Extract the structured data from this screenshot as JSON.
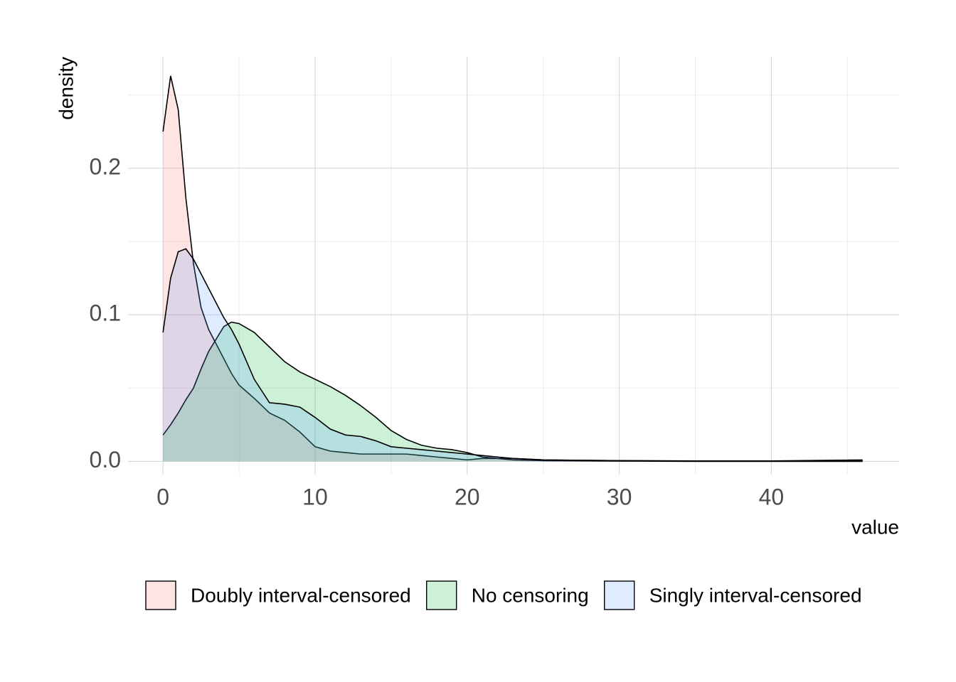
{
  "chart_data": {
    "type": "density",
    "x_label": "value",
    "y_label": "density",
    "x": [
      0,
      0.5,
      1,
      1.5,
      2,
      2.5,
      3,
      4,
      4.5,
      5,
      6,
      7,
      8,
      9,
      10,
      11,
      12,
      13,
      14,
      15,
      16,
      17,
      18,
      19,
      20,
      21,
      22,
      23,
      25,
      30,
      35,
      40,
      46
    ],
    "series": [
      {
        "name": "Doubly interval-censored",
        "color": "#F8766D",
        "values": [
          0.225,
          0.263,
          0.24,
          0.18,
          0.135,
          0.105,
          0.09,
          0.07,
          0.06,
          0.052,
          0.043,
          0.033,
          0.028,
          0.02,
          0.01,
          0.007,
          0.006,
          0.005,
          0.005,
          0.005,
          0.005,
          0.004,
          0.003,
          0.002,
          0.001,
          0.002,
          0.002,
          0.002,
          0.001,
          0.0005,
          0.0003,
          0.0003,
          0.001
        ]
      },
      {
        "name": "No censoring",
        "color": "#00BA38",
        "values": [
          0.018,
          0.025,
          0.033,
          0.042,
          0.05,
          0.063,
          0.075,
          0.092,
          0.095,
          0.094,
          0.088,
          0.078,
          0.068,
          0.061,
          0.056,
          0.051,
          0.045,
          0.038,
          0.03,
          0.021,
          0.015,
          0.011,
          0.009,
          0.008,
          0.006,
          0.003,
          0.002,
          0.001,
          0.0005,
          0.0002,
          0,
          0,
          0
        ]
      },
      {
        "name": "Singly interval-censored",
        "color": "#619CFF",
        "values": [
          0.088,
          0.125,
          0.143,
          0.145,
          0.138,
          0.128,
          0.118,
          0.098,
          0.09,
          0.08,
          0.056,
          0.04,
          0.039,
          0.037,
          0.03,
          0.022,
          0.018,
          0.017,
          0.014,
          0.01,
          0.009,
          0.008,
          0.007,
          0.006,
          0.005,
          0.004,
          0.003,
          0.002,
          0.001,
          0.0005,
          0.0002,
          0.0002,
          0.0005
        ]
      }
    ],
    "fill_opacity": 0.2,
    "xlim": [
      -2.3,
      48.4
    ],
    "ylim": [
      -0.009,
      0.276
    ],
    "xticks": [
      0,
      10,
      20,
      30,
      40
    ],
    "yticks": [
      {
        "value": 0,
        "label": "0.0"
      },
      0.1,
      0.2
    ],
    "xminorticks": [
      5,
      15,
      25,
      35,
      45
    ],
    "yminorticks": [
      0.05,
      0.15,
      0.25
    ],
    "grid": true,
    "legend": "bottom"
  }
}
